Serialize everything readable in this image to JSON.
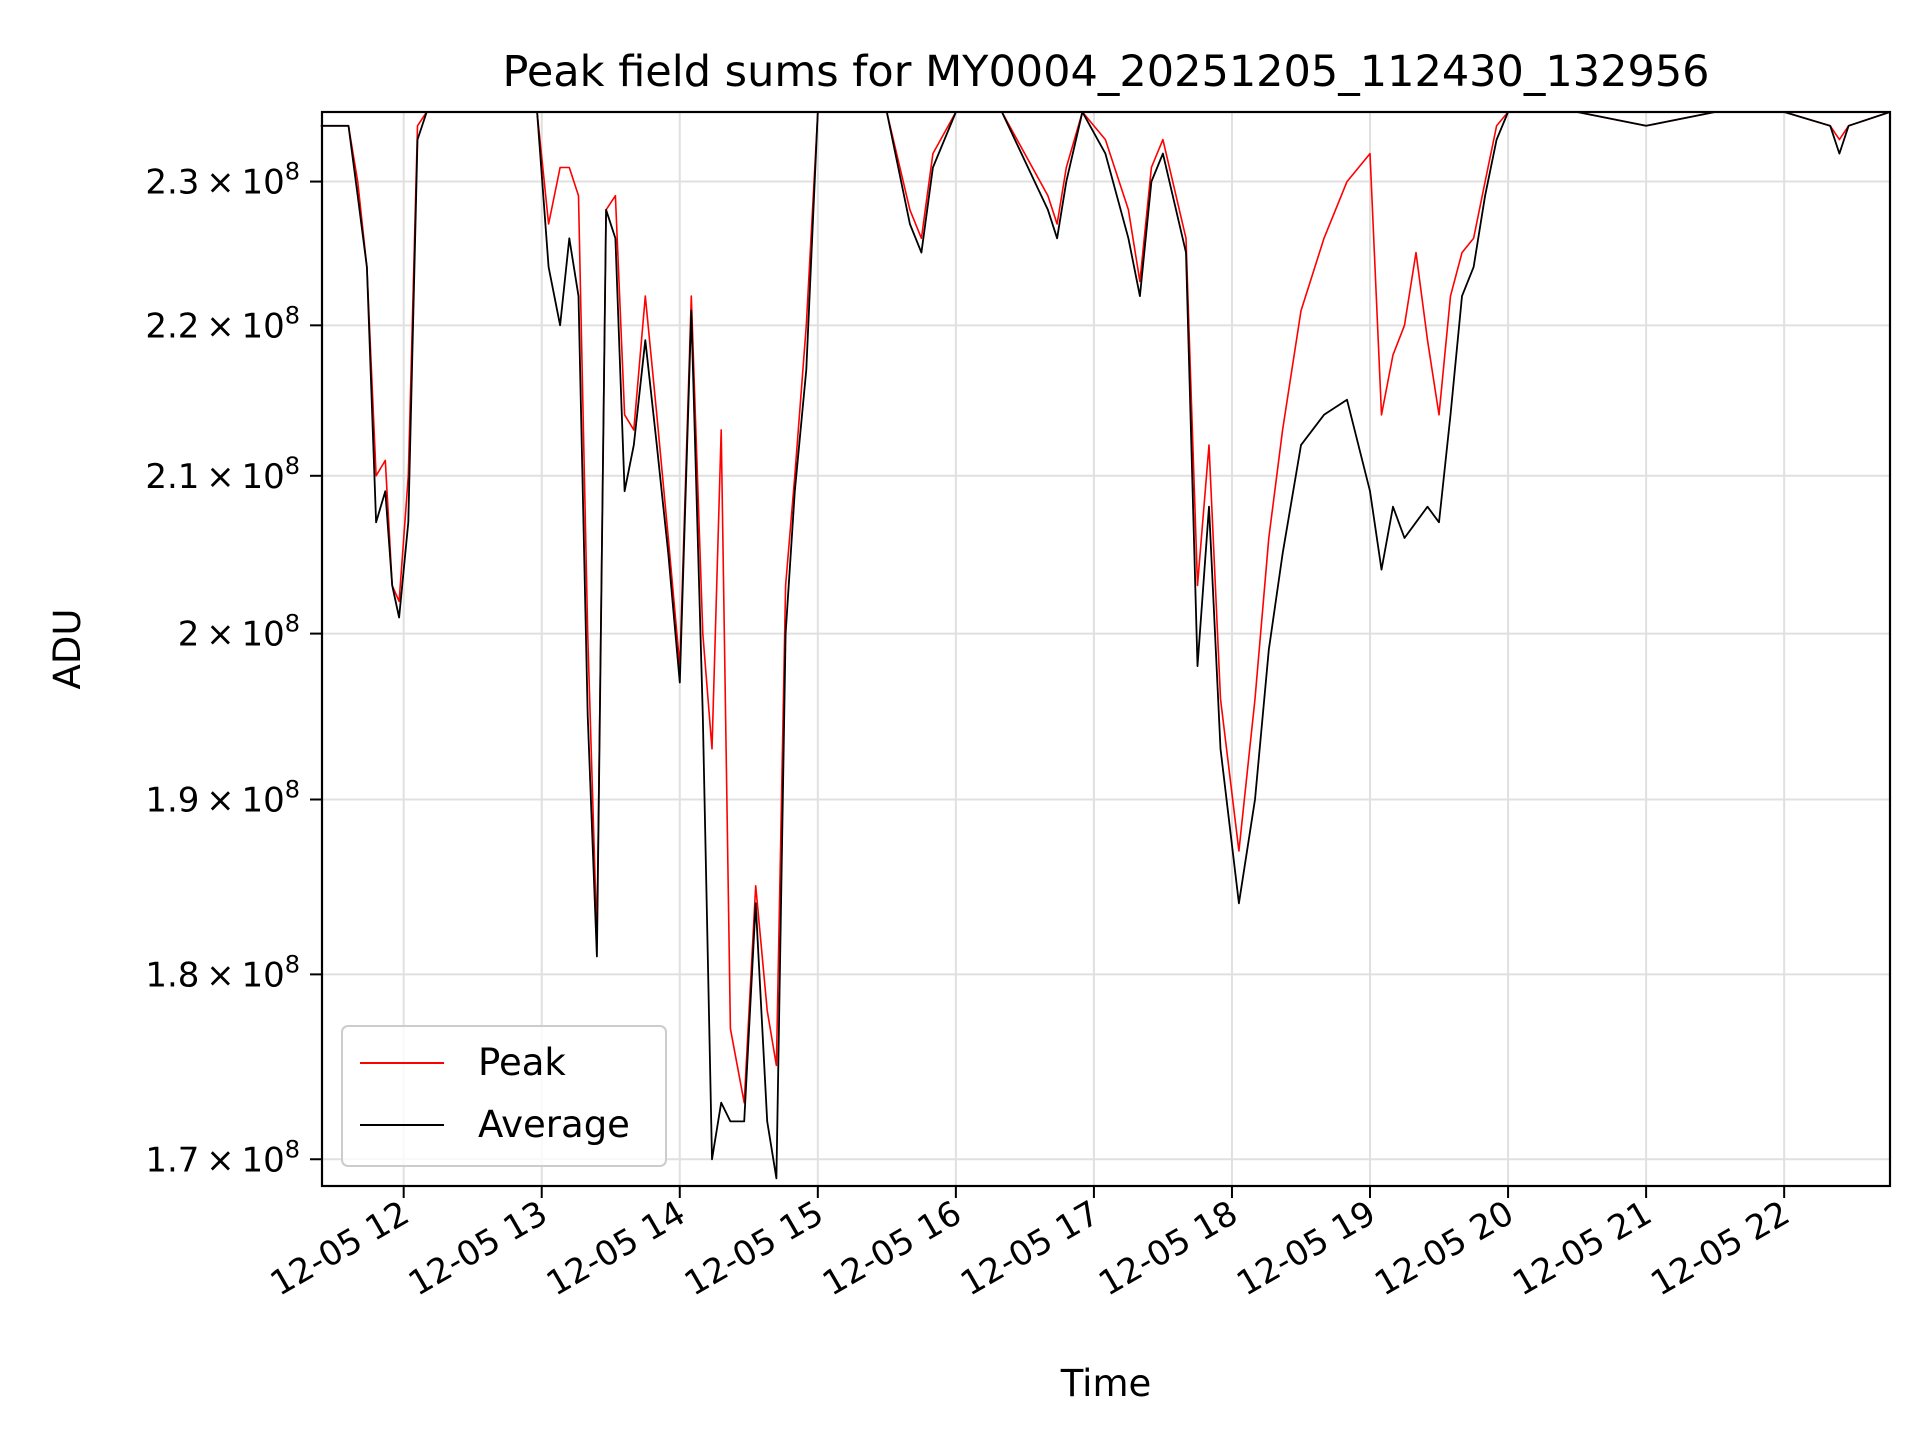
{
  "chart_data": {
    "type": "line",
    "title": "Peak field sums for MY0004_20251205_112430_132956",
    "xlabel": "Time",
    "ylabel": "ADU",
    "yscale": "log",
    "xlim": [
      "2025-12-05 11:24:30",
      "2025-12-05 22:46:00"
    ],
    "ylim": [
      168600000,
      235000000
    ],
    "x_ticks": [
      "12-05 12",
      "12-05 13",
      "12-05 14",
      "12-05 15",
      "12-05 16",
      "12-05 17",
      "12-05 18",
      "12-05 19",
      "12-05 20",
      "12-05 21",
      "12-05 22"
    ],
    "x_tick_values": [
      "2025-12-05 12:00",
      "2025-12-05 13:00",
      "2025-12-05 14:00",
      "2025-12-05 15:00",
      "2025-12-05 16:00",
      "2025-12-05 17:00",
      "2025-12-05 18:00",
      "2025-12-05 19:00",
      "2025-12-05 20:00",
      "2025-12-05 21:00",
      "2025-12-05 22:00"
    ],
    "y_ticks": [
      {
        "value": 170000000,
        "mantissa": "1.7",
        "exp": "8"
      },
      {
        "value": 180000000,
        "mantissa": "1.8",
        "exp": "8"
      },
      {
        "value": 190000000,
        "mantissa": "1.9",
        "exp": "8"
      },
      {
        "value": 200000000,
        "mantissa": "2",
        "exp": "8"
      },
      {
        "value": 210000000,
        "mantissa": "2.1",
        "exp": "8"
      },
      {
        "value": 220000000,
        "mantissa": "2.2",
        "exp": "8"
      },
      {
        "value": 230000000,
        "mantissa": "2.3",
        "exp": "8"
      }
    ],
    "grid": true,
    "legend_position": "lower-left",
    "series": [
      {
        "name": "Peak",
        "color": "#ff0000",
        "x": [
          "2025-12-05 11:24",
          "2025-12-05 11:30",
          "2025-12-05 11:36",
          "2025-12-05 11:40",
          "2025-12-05 11:44",
          "2025-12-05 11:48",
          "2025-12-05 11:52",
          "2025-12-05 11:55",
          "2025-12-05 11:58",
          "2025-12-05 12:02",
          "2025-12-05 12:06",
          "2025-12-05 12:10",
          "2025-12-05 12:20",
          "2025-12-05 12:40",
          "2025-12-05 12:58",
          "2025-12-05 13:03",
          "2025-12-05 13:08",
          "2025-12-05 13:12",
          "2025-12-05 13:16",
          "2025-12-05 13:20",
          "2025-12-05 13:24",
          "2025-12-05 13:28",
          "2025-12-05 13:32",
          "2025-12-05 13:36",
          "2025-12-05 13:40",
          "2025-12-05 13:45",
          "2025-12-05 13:50",
          "2025-12-05 13:55",
          "2025-12-05 14:00",
          "2025-12-05 14:05",
          "2025-12-05 14:10",
          "2025-12-05 14:14",
          "2025-12-05 14:18",
          "2025-12-05 14:22",
          "2025-12-05 14:28",
          "2025-12-05 14:33",
          "2025-12-05 14:38",
          "2025-12-05 14:42",
          "2025-12-05 14:46",
          "2025-12-05 14:50",
          "2025-12-05 14:55",
          "2025-12-05 15:00",
          "2025-12-05 15:30",
          "2025-12-05 15:40",
          "2025-12-05 15:45",
          "2025-12-05 15:50",
          "2025-12-05 16:00",
          "2025-12-05 16:20",
          "2025-12-05 16:40",
          "2025-12-05 16:44",
          "2025-12-05 16:48",
          "2025-12-05 16:55",
          "2025-12-05 17:05",
          "2025-12-05 17:15",
          "2025-12-05 17:20",
          "2025-12-05 17:25",
          "2025-12-05 17:30",
          "2025-12-05 17:40",
          "2025-12-05 17:45",
          "2025-12-05 17:50",
          "2025-12-05 17:55",
          "2025-12-05 18:03",
          "2025-12-05 18:10",
          "2025-12-05 18:16",
          "2025-12-05 18:22",
          "2025-12-05 18:30",
          "2025-12-05 18:40",
          "2025-12-05 18:50",
          "2025-12-05 19:00",
          "2025-12-05 19:05",
          "2025-12-05 19:10",
          "2025-12-05 19:15",
          "2025-12-05 19:20",
          "2025-12-05 19:25",
          "2025-12-05 19:30",
          "2025-12-05 19:35",
          "2025-12-05 19:40",
          "2025-12-05 19:45",
          "2025-12-05 19:50",
          "2025-12-05 19:55",
          "2025-12-05 20:00",
          "2025-12-05 20:30",
          "2025-12-05 21:00",
          "2025-12-05 21:30",
          "2025-12-05 22:00",
          "2025-12-05 22:20",
          "2025-12-05 22:24",
          "2025-12-05 22:28",
          "2025-12-05 22:46"
        ],
        "values": [
          234000000,
          234000000,
          234000000,
          230000000,
          224000000,
          210000000,
          211000000,
          203000000,
          202000000,
          210000000,
          234000000,
          235000000,
          235000000,
          235000000,
          235000000,
          227000000,
          231000000,
          231000000,
          229000000,
          200000000,
          182000000,
          228000000,
          229000000,
          214000000,
          213000000,
          222000000,
          214000000,
          206000000,
          198000000,
          222000000,
          200000000,
          193000000,
          213000000,
          177000000,
          173000000,
          185000000,
          178000000,
          175000000,
          203000000,
          210000000,
          220000000,
          235000000,
          235000000,
          228000000,
          226000000,
          232000000,
          235000000,
          235000000,
          229000000,
          227000000,
          231000000,
          235000000,
          233000000,
          228000000,
          223000000,
          231000000,
          233000000,
          226000000,
          203000000,
          212000000,
          196000000,
          187000000,
          196000000,
          206000000,
          213000000,
          221000000,
          226000000,
          230000000,
          232000000,
          214000000,
          218000000,
          220000000,
          225000000,
          219000000,
          214000000,
          222000000,
          225000000,
          226000000,
          230000000,
          234000000,
          235000000,
          235000000,
          234000000,
          235000000,
          235000000,
          234000000,
          233000000,
          234000000,
          235000000
        ]
      },
      {
        "name": "Average",
        "color": "#000000",
        "x": [
          "2025-12-05 11:24",
          "2025-12-05 11:30",
          "2025-12-05 11:36",
          "2025-12-05 11:40",
          "2025-12-05 11:44",
          "2025-12-05 11:48",
          "2025-12-05 11:52",
          "2025-12-05 11:55",
          "2025-12-05 11:58",
          "2025-12-05 12:02",
          "2025-12-05 12:06",
          "2025-12-05 12:10",
          "2025-12-05 12:20",
          "2025-12-05 12:40",
          "2025-12-05 12:58",
          "2025-12-05 13:03",
          "2025-12-05 13:08",
          "2025-12-05 13:12",
          "2025-12-05 13:16",
          "2025-12-05 13:20",
          "2025-12-05 13:24",
          "2025-12-05 13:28",
          "2025-12-05 13:32",
          "2025-12-05 13:36",
          "2025-12-05 13:40",
          "2025-12-05 13:45",
          "2025-12-05 13:50",
          "2025-12-05 13:55",
          "2025-12-05 14:00",
          "2025-12-05 14:05",
          "2025-12-05 14:10",
          "2025-12-05 14:14",
          "2025-12-05 14:18",
          "2025-12-05 14:22",
          "2025-12-05 14:28",
          "2025-12-05 14:33",
          "2025-12-05 14:38",
          "2025-12-05 14:42",
          "2025-12-05 14:46",
          "2025-12-05 14:50",
          "2025-12-05 14:55",
          "2025-12-05 15:00",
          "2025-12-05 15:30",
          "2025-12-05 15:40",
          "2025-12-05 15:45",
          "2025-12-05 15:50",
          "2025-12-05 16:00",
          "2025-12-05 16:20",
          "2025-12-05 16:40",
          "2025-12-05 16:44",
          "2025-12-05 16:48",
          "2025-12-05 16:55",
          "2025-12-05 17:05",
          "2025-12-05 17:15",
          "2025-12-05 17:20",
          "2025-12-05 17:25",
          "2025-12-05 17:30",
          "2025-12-05 17:40",
          "2025-12-05 17:45",
          "2025-12-05 17:50",
          "2025-12-05 17:55",
          "2025-12-05 18:03",
          "2025-12-05 18:10",
          "2025-12-05 18:16",
          "2025-12-05 18:22",
          "2025-12-05 18:30",
          "2025-12-05 18:40",
          "2025-12-05 18:50",
          "2025-12-05 19:00",
          "2025-12-05 19:05",
          "2025-12-05 19:10",
          "2025-12-05 19:15",
          "2025-12-05 19:20",
          "2025-12-05 19:25",
          "2025-12-05 19:30",
          "2025-12-05 19:35",
          "2025-12-05 19:40",
          "2025-12-05 19:45",
          "2025-12-05 19:50",
          "2025-12-05 19:55",
          "2025-12-05 20:00",
          "2025-12-05 20:30",
          "2025-12-05 21:00",
          "2025-12-05 21:30",
          "2025-12-05 22:00",
          "2025-12-05 22:20",
          "2025-12-05 22:24",
          "2025-12-05 22:28",
          "2025-12-05 22:46"
        ],
        "values": [
          234000000,
          234000000,
          234000000,
          229000000,
          224000000,
          207000000,
          209000000,
          203000000,
          201000000,
          207000000,
          233000000,
          235000000,
          235000000,
          235000000,
          235000000,
          224000000,
          220000000,
          226000000,
          222000000,
          195000000,
          181000000,
          228000000,
          226000000,
          209000000,
          212000000,
          219000000,
          212000000,
          205000000,
          197000000,
          221000000,
          195000000,
          170000000,
          173000000,
          172000000,
          172000000,
          184000000,
          172000000,
          169000000,
          200000000,
          209000000,
          217000000,
          235000000,
          235000000,
          227000000,
          225000000,
          231000000,
          235000000,
          235000000,
          228000000,
          226000000,
          230000000,
          235000000,
          232000000,
          226000000,
          222000000,
          230000000,
          232000000,
          225000000,
          198000000,
          208000000,
          193000000,
          184000000,
          190000000,
          199000000,
          205000000,
          212000000,
          214000000,
          215000000,
          209000000,
          204000000,
          208000000,
          206000000,
          207000000,
          208000000,
          207000000,
          214000000,
          222000000,
          224000000,
          229000000,
          233000000,
          235000000,
          235000000,
          234000000,
          235000000,
          235000000,
          234000000,
          232000000,
          234000000,
          235000000
        ]
      }
    ]
  }
}
